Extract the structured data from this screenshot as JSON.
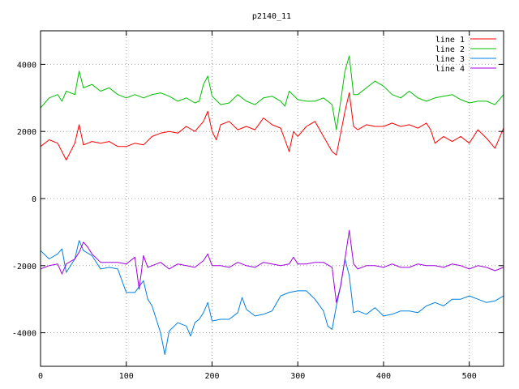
{
  "chart_data": {
    "type": "line",
    "title": "p2140_11",
    "xlabel": "",
    "ylabel": "",
    "xlim": [
      0,
      540
    ],
    "ylim": [
      -5000,
      5000
    ],
    "xticks": [
      0,
      100,
      200,
      300,
      400,
      500
    ],
    "yticks": [
      -4000,
      -2000,
      0,
      2000,
      4000
    ],
    "grid": true,
    "legend_position": "top-right",
    "series": [
      {
        "name": "line 1",
        "color": "#ff0000",
        "points": [
          [
            0,
            1550
          ],
          [
            10,
            1750
          ],
          [
            20,
            1650
          ],
          [
            30,
            1150
          ],
          [
            40,
            1650
          ],
          [
            45,
            2200
          ],
          [
            50,
            1600
          ],
          [
            60,
            1700
          ],
          [
            70,
            1650
          ],
          [
            80,
            1700
          ],
          [
            90,
            1550
          ],
          [
            100,
            1550
          ],
          [
            110,
            1650
          ],
          [
            120,
            1600
          ],
          [
            130,
            1850
          ],
          [
            140,
            1950
          ],
          [
            150,
            2000
          ],
          [
            160,
            1950
          ],
          [
            170,
            2150
          ],
          [
            180,
            2000
          ],
          [
            190,
            2300
          ],
          [
            195,
            2600
          ],
          [
            200,
            2000
          ],
          [
            205,
            1750
          ],
          [
            210,
            2200
          ],
          [
            220,
            2300
          ],
          [
            230,
            2050
          ],
          [
            240,
            2150
          ],
          [
            250,
            2050
          ],
          [
            260,
            2400
          ],
          [
            270,
            2200
          ],
          [
            280,
            2100
          ],
          [
            285,
            1750
          ],
          [
            290,
            1400
          ],
          [
            295,
            2000
          ],
          [
            300,
            1850
          ],
          [
            310,
            2150
          ],
          [
            320,
            2300
          ],
          [
            330,
            1850
          ],
          [
            340,
            1400
          ],
          [
            345,
            1300
          ],
          [
            350,
            1950
          ],
          [
            355,
            2600
          ],
          [
            360,
            3150
          ],
          [
            365,
            2150
          ],
          [
            370,
            2050
          ],
          [
            380,
            2200
          ],
          [
            390,
            2150
          ],
          [
            400,
            2150
          ],
          [
            410,
            2250
          ],
          [
            420,
            2150
          ],
          [
            430,
            2200
          ],
          [
            440,
            2100
          ],
          [
            450,
            2250
          ],
          [
            455,
            2050
          ],
          [
            460,
            1650
          ],
          [
            470,
            1850
          ],
          [
            480,
            1700
          ],
          [
            490,
            1850
          ],
          [
            500,
            1650
          ],
          [
            510,
            2050
          ],
          [
            520,
            1800
          ],
          [
            530,
            1500
          ],
          [
            540,
            2100
          ]
        ]
      },
      {
        "name": "line 2",
        "color": "#00c000",
        "points": [
          [
            0,
            2700
          ],
          [
            10,
            3000
          ],
          [
            20,
            3100
          ],
          [
            25,
            2900
          ],
          [
            30,
            3200
          ],
          [
            40,
            3100
          ],
          [
            45,
            3800
          ],
          [
            50,
            3300
          ],
          [
            60,
            3400
          ],
          [
            70,
            3200
          ],
          [
            80,
            3300
          ],
          [
            90,
            3100
          ],
          [
            100,
            3000
          ],
          [
            110,
            3100
          ],
          [
            120,
            3000
          ],
          [
            130,
            3100
          ],
          [
            140,
            3150
          ],
          [
            150,
            3050
          ],
          [
            160,
            2900
          ],
          [
            170,
            3000
          ],
          [
            180,
            2850
          ],
          [
            185,
            2900
          ],
          [
            190,
            3400
          ],
          [
            195,
            3650
          ],
          [
            200,
            3050
          ],
          [
            210,
            2800
          ],
          [
            220,
            2850
          ],
          [
            230,
            3100
          ],
          [
            240,
            2900
          ],
          [
            250,
            2800
          ],
          [
            260,
            3000
          ],
          [
            270,
            3050
          ],
          [
            280,
            2900
          ],
          [
            285,
            2750
          ],
          [
            290,
            3200
          ],
          [
            300,
            2950
          ],
          [
            310,
            2900
          ],
          [
            320,
            2900
          ],
          [
            330,
            3000
          ],
          [
            340,
            2800
          ],
          [
            345,
            2050
          ],
          [
            350,
            2900
          ],
          [
            355,
            3800
          ],
          [
            360,
            4250
          ],
          [
            365,
            3100
          ],
          [
            370,
            3100
          ],
          [
            380,
            3300
          ],
          [
            390,
            3500
          ],
          [
            400,
            3350
          ],
          [
            410,
            3100
          ],
          [
            420,
            3000
          ],
          [
            430,
            3200
          ],
          [
            440,
            3000
          ],
          [
            450,
            2900
          ],
          [
            460,
            3000
          ],
          [
            470,
            3050
          ],
          [
            480,
            3100
          ],
          [
            490,
            2950
          ],
          [
            500,
            2850
          ],
          [
            510,
            2900
          ],
          [
            520,
            2900
          ],
          [
            530,
            2800
          ],
          [
            540,
            3100
          ]
        ]
      },
      {
        "name": "line 3",
        "color": "#0080e0",
        "points": [
          [
            0,
            -1550
          ],
          [
            10,
            -1800
          ],
          [
            20,
            -1650
          ],
          [
            25,
            -1500
          ],
          [
            30,
            -2200
          ],
          [
            40,
            -1800
          ],
          [
            45,
            -1250
          ],
          [
            50,
            -1550
          ],
          [
            60,
            -1700
          ],
          [
            70,
            -2100
          ],
          [
            80,
            -2050
          ],
          [
            90,
            -2100
          ],
          [
            100,
            -2800
          ],
          [
            110,
            -2800
          ],
          [
            120,
            -2450
          ],
          [
            125,
            -3000
          ],
          [
            130,
            -3200
          ],
          [
            140,
            -4000
          ],
          [
            145,
            -4650
          ],
          [
            150,
            -3950
          ],
          [
            160,
            -3700
          ],
          [
            170,
            -3800
          ],
          [
            175,
            -4100
          ],
          [
            180,
            -3700
          ],
          [
            185,
            -3600
          ],
          [
            190,
            -3400
          ],
          [
            195,
            -3100
          ],
          [
            200,
            -3650
          ],
          [
            210,
            -3600
          ],
          [
            220,
            -3600
          ],
          [
            230,
            -3400
          ],
          [
            235,
            -2950
          ],
          [
            240,
            -3300
          ],
          [
            250,
            -3500
          ],
          [
            260,
            -3450
          ],
          [
            270,
            -3350
          ],
          [
            280,
            -2900
          ],
          [
            290,
            -2800
          ],
          [
            300,
            -2750
          ],
          [
            310,
            -2750
          ],
          [
            320,
            -3000
          ],
          [
            330,
            -3350
          ],
          [
            335,
            -3800
          ],
          [
            340,
            -3900
          ],
          [
            345,
            -3200
          ],
          [
            350,
            -2600
          ],
          [
            355,
            -1800
          ],
          [
            360,
            -2300
          ],
          [
            365,
            -3400
          ],
          [
            370,
            -3350
          ],
          [
            380,
            -3450
          ],
          [
            390,
            -3250
          ],
          [
            400,
            -3500
          ],
          [
            410,
            -3450
          ],
          [
            420,
            -3350
          ],
          [
            430,
            -3350
          ],
          [
            440,
            -3400
          ],
          [
            450,
            -3200
          ],
          [
            460,
            -3100
          ],
          [
            470,
            -3200
          ],
          [
            480,
            -3000
          ],
          [
            490,
            -3000
          ],
          [
            500,
            -2900
          ],
          [
            510,
            -3000
          ],
          [
            520,
            -3100
          ],
          [
            530,
            -3050
          ],
          [
            540,
            -2900
          ]
        ]
      },
      {
        "name": "line 4",
        "color": "#a000e0",
        "points": [
          [
            0,
            -2100
          ],
          [
            10,
            -2000
          ],
          [
            20,
            -1950
          ],
          [
            25,
            -2250
          ],
          [
            30,
            -1950
          ],
          [
            40,
            -1800
          ],
          [
            45,
            -1600
          ],
          [
            50,
            -1300
          ],
          [
            55,
            -1450
          ],
          [
            60,
            -1650
          ],
          [
            70,
            -1900
          ],
          [
            80,
            -1900
          ],
          [
            90,
            -1900
          ],
          [
            100,
            -1950
          ],
          [
            110,
            -1750
          ],
          [
            115,
            -2700
          ],
          [
            120,
            -1700
          ],
          [
            125,
            -2050
          ],
          [
            130,
            -2000
          ],
          [
            140,
            -1900
          ],
          [
            150,
            -2100
          ],
          [
            160,
            -1950
          ],
          [
            170,
            -2000
          ],
          [
            180,
            -2050
          ],
          [
            190,
            -1850
          ],
          [
            195,
            -1650
          ],
          [
            200,
            -2000
          ],
          [
            210,
            -2000
          ],
          [
            220,
            -2050
          ],
          [
            230,
            -1900
          ],
          [
            240,
            -2000
          ],
          [
            250,
            -2050
          ],
          [
            260,
            -1900
          ],
          [
            270,
            -1950
          ],
          [
            280,
            -2000
          ],
          [
            290,
            -1950
          ],
          [
            295,
            -1750
          ],
          [
            300,
            -1950
          ],
          [
            310,
            -1950
          ],
          [
            320,
            -1900
          ],
          [
            330,
            -1900
          ],
          [
            340,
            -2050
          ],
          [
            345,
            -3100
          ],
          [
            350,
            -2600
          ],
          [
            355,
            -1800
          ],
          [
            360,
            -950
          ],
          [
            365,
            -1950
          ],
          [
            370,
            -2100
          ],
          [
            380,
            -2000
          ],
          [
            390,
            -2000
          ],
          [
            400,
            -2050
          ],
          [
            410,
            -1950
          ],
          [
            420,
            -2050
          ],
          [
            430,
            -2050
          ],
          [
            440,
            -1950
          ],
          [
            450,
            -2000
          ],
          [
            460,
            -2000
          ],
          [
            470,
            -2050
          ],
          [
            480,
            -1950
          ],
          [
            490,
            -2000
          ],
          [
            500,
            -2100
          ],
          [
            510,
            -2000
          ],
          [
            520,
            -2050
          ],
          [
            530,
            -2150
          ],
          [
            540,
            -2050
          ]
        ]
      }
    ]
  }
}
